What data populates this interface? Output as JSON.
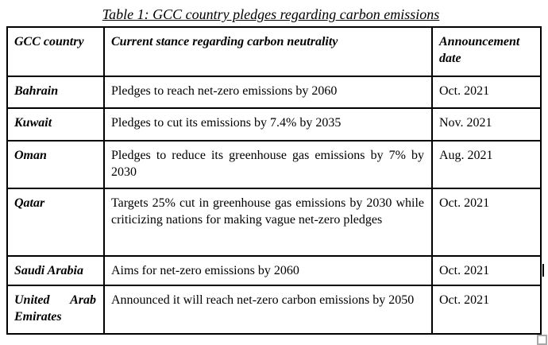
{
  "caption": "Table 1: GCC country pledges regarding carbon emissions",
  "table": {
    "headers": {
      "country": "GCC country",
      "stance": "Current stance regarding carbon neutrality",
      "date": "Announcement date"
    },
    "rows": [
      {
        "country": "Bahrain",
        "stance": "Pledges to reach net-zero emissions by 2060",
        "date": "Oct. 2021"
      },
      {
        "country": "Kuwait",
        "stance": "Pledges to cut its emissions by 7.4% by 2035",
        "date": "Nov. 2021"
      },
      {
        "country": "Oman",
        "stance": "Pledges to reduce its greenhouse gas emissions by 7% by 2030",
        "date": "Aug. 2021"
      },
      {
        "country": "Qatar",
        "stance": "Targets 25% cut in greenhouse gas emissions by 2030 while criticizing nations for making vague net-zero pledges",
        "date": "Oct. 2021"
      },
      {
        "country": "Saudi Arabia",
        "stance": "Aims for net-zero emissions by 2060",
        "date": "Oct. 2021"
      },
      {
        "country": "United Arab Emirates",
        "stance": "Announced it will reach net-zero carbon emissions by 2050",
        "date": "Oct. 2021"
      }
    ]
  },
  "colors": {
    "background": "#ffffff",
    "text": "#000000",
    "border": "#000000",
    "resize_handle": "#a8a8a8"
  }
}
